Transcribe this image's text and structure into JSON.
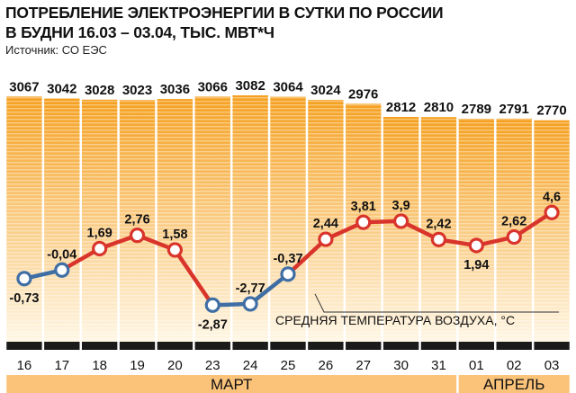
{
  "header": {
    "title_line1": "ПОТРЕБЛЕНИЕ ЭЛЕКТРОЭНЕРГИИ В СУТКИ ПО РОССИИ",
    "title_line2": "В БУДНИ  16.03 – 03.04, ТЫС. МВТ*Ч",
    "source": "Источник: СО ЕЭС"
  },
  "chart_data": {
    "type": "bar",
    "title": "ПОТРЕБЛЕНИЕ ЭЛЕКТРОЭНЕРГИИ В СУТКИ ПО РОССИИ В БУДНИ  16.03 – 03.04, ТЫС. МВТ*Ч",
    "categories": [
      "16",
      "17",
      "18",
      "19",
      "20",
      "23",
      "24",
      "25",
      "26",
      "27",
      "30",
      "31",
      "01",
      "02",
      "03"
    ],
    "series": [
      {
        "values": [
          3067,
          3042,
          3028,
          3023,
          3036,
          3066,
          3082,
          3064,
          3024,
          2976,
          2812,
          2810,
          2789,
          2791,
          2770
        ],
        "labels": [
          "3067",
          "3042",
          "3028",
          "3023",
          "3036",
          "3066",
          "3082",
          "3064",
          "3024",
          "2976",
          "2812",
          "2810",
          "2789",
          "2791",
          "2770"
        ],
        "color": "#f5a020"
      },
      {
        "name": "СРЕДНЯЯ ТЕМПЕРАТУРА ВОЗДУХА, °С",
        "type": "line",
        "values": [
          -0.73,
          -0.04,
          1.69,
          2.76,
          1.58,
          -2.87,
          -2.77,
          -0.37,
          2.44,
          3.81,
          3.9,
          2.42,
          1.94,
          2.62,
          4.6
        ],
        "labels": [
          "-0,73",
          "-0,04",
          "1,69",
          "2,76",
          "1,58",
          "-2,87",
          "-2,77",
          "-0,37",
          "2,44",
          "3,81",
          "3,9",
          "2,42",
          "1,94",
          "2,62",
          "4,6"
        ],
        "positive_color": "#d9342b",
        "negative_color": "#3f6ea5"
      }
    ],
    "months": [
      {
        "label": "МАРТ",
        "from_index": 0,
        "to_index": 11
      },
      {
        "label": "АПРЕЛЬ",
        "from_index": 12,
        "to_index": 14
      }
    ],
    "ylim_bars": [
      0,
      3082
    ],
    "ylim_temp": [
      -3.5,
      5.2
    ],
    "annotation": "СРЕДНЯЯ ТЕМПЕРАТУРА ВОЗДУХА, °С",
    "grid": false
  }
}
